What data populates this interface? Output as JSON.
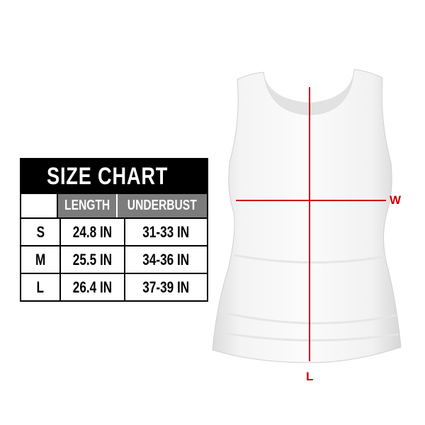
{
  "size_chart": {
    "title": "SIZE CHART",
    "columns": [
      "",
      "LENGTH",
      "UNDERBUST"
    ],
    "rows": [
      {
        "size": "S",
        "length": "24.8 IN",
        "underbust": "31-33 IN"
      },
      {
        "size": "M",
        "length": "25.5 IN",
        "underbust": "34-36 IN"
      },
      {
        "size": "L",
        "length": "26.4 IN",
        "underbust": "37-39 IN"
      }
    ]
  },
  "garment": {
    "width_label": "W",
    "length_label": "L",
    "measure_color": "#cc0000"
  }
}
